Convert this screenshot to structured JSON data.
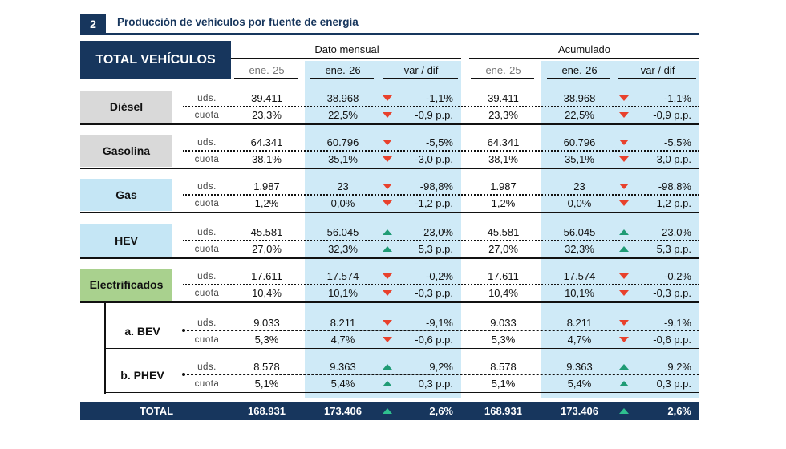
{
  "section": {
    "number": "2",
    "title": "Producción de vehículos por fuente de energía"
  },
  "header": {
    "corner": "TOTAL VEHÍCULOS",
    "groups": [
      "Dato mensual",
      "Acumulado"
    ],
    "columns": [
      "ene.-25",
      "ene.-26",
      "var / dif",
      "ene.-25",
      "ene.-26",
      "var / dif"
    ]
  },
  "colors": {
    "navy": "#17365d",
    "up": "#1f9b74",
    "down": "#e8412c",
    "highlight": "#cfeaf7",
    "gray": "#d9d9d9",
    "blue": "#c5e6f5",
    "green": "#a9d18e"
  },
  "rows": [
    {
      "label": "Diésel",
      "style": "gray",
      "lines": [
        {
          "unit": "uds.",
          "m25": "39.411",
          "m26": "38.968",
          "mdir": "down",
          "mvar": "-1,1%",
          "a25": "39.411",
          "a26": "38.968",
          "adir": "down",
          "avar": "-1,1%"
        },
        {
          "unit": "cuota",
          "m25": "23,3%",
          "m26": "22,5%",
          "mdir": "down",
          "mvar": "-0,9 p.p.",
          "a25": "23,3%",
          "a26": "22,5%",
          "adir": "down",
          "avar": "-0,9 p.p."
        }
      ]
    },
    {
      "label": "Gasolina",
      "style": "gray",
      "lines": [
        {
          "unit": "uds.",
          "m25": "64.341",
          "m26": "60.796",
          "mdir": "down",
          "mvar": "-5,5%",
          "a25": "64.341",
          "a26": "60.796",
          "adir": "down",
          "avar": "-5,5%"
        },
        {
          "unit": "cuota",
          "m25": "38,1%",
          "m26": "35,1%",
          "mdir": "down",
          "mvar": "-3,0 p.p.",
          "a25": "38,1%",
          "a26": "35,1%",
          "adir": "down",
          "avar": "-3,0 p.p."
        }
      ]
    },
    {
      "label": "Gas",
      "style": "blue",
      "lines": [
        {
          "unit": "uds.",
          "m25": "1.987",
          "m26": "23",
          "mdir": "down",
          "mvar": "-98,8%",
          "a25": "1.987",
          "a26": "23",
          "adir": "down",
          "avar": "-98,8%"
        },
        {
          "unit": "cuota",
          "m25": "1,2%",
          "m26": "0,0%",
          "mdir": "down",
          "mvar": "-1,2 p.p.",
          "a25": "1,2%",
          "a26": "0,0%",
          "adir": "down",
          "avar": "-1,2 p.p."
        }
      ]
    },
    {
      "label": "HEV",
      "style": "blue",
      "lines": [
        {
          "unit": "uds.",
          "m25": "45.581",
          "m26": "56.045",
          "mdir": "up",
          "mvar": "23,0%",
          "a25": "45.581",
          "a26": "56.045",
          "adir": "up",
          "avar": "23,0%"
        },
        {
          "unit": "cuota",
          "m25": "27,0%",
          "m26": "32,3%",
          "mdir": "up",
          "mvar": "5,3 p.p.",
          "a25": "27,0%",
          "a26": "32,3%",
          "adir": "up",
          "avar": "5,3 p.p."
        }
      ]
    },
    {
      "label": "Electrificados",
      "style": "green",
      "lines": [
        {
          "unit": "uds.",
          "m25": "17.611",
          "m26": "17.574",
          "mdir": "down",
          "mvar": "-0,2%",
          "a25": "17.611",
          "a26": "17.574",
          "adir": "down",
          "avar": "-0,2%"
        },
        {
          "unit": "cuota",
          "m25": "10,4%",
          "m26": "10,1%",
          "mdir": "down",
          "mvar": "-0,3 p.p.",
          "a25": "10,4%",
          "a26": "10,1%",
          "adir": "down",
          "avar": "-0,3 p.p."
        }
      ]
    },
    {
      "label": "a. BEV",
      "style": "sub",
      "lines": [
        {
          "unit": "uds.",
          "m25": "9.033",
          "m26": "8.211",
          "mdir": "down",
          "mvar": "-9,1%",
          "a25": "9.033",
          "a26": "8.211",
          "adir": "down",
          "avar": "-9,1%"
        },
        {
          "unit": "cuota",
          "m25": "5,3%",
          "m26": "4,7%",
          "mdir": "down",
          "mvar": "-0,6 p.p.",
          "a25": "5,3%",
          "a26": "4,7%",
          "adir": "down",
          "avar": "-0,6 p.p."
        }
      ]
    },
    {
      "label": "b. PHEV",
      "style": "sub",
      "lines": [
        {
          "unit": "uds.",
          "m25": "8.578",
          "m26": "9.363",
          "mdir": "up",
          "mvar": "9,2%",
          "a25": "8.578",
          "a26": "9.363",
          "adir": "up",
          "avar": "9,2%"
        },
        {
          "unit": "cuota",
          "m25": "5,1%",
          "m26": "5,4%",
          "mdir": "up",
          "mvar": "0,3 p.p.",
          "a25": "5,1%",
          "a26": "5,4%",
          "adir": "up",
          "avar": "0,3 p.p."
        }
      ]
    }
  ],
  "total": {
    "label": "TOTAL",
    "m25": "168.931",
    "m26": "173.406",
    "mdir": "up",
    "mvar": "2,6%",
    "a25": "168.931",
    "a26": "173.406",
    "adir": "up",
    "avar": "2,6%"
  }
}
